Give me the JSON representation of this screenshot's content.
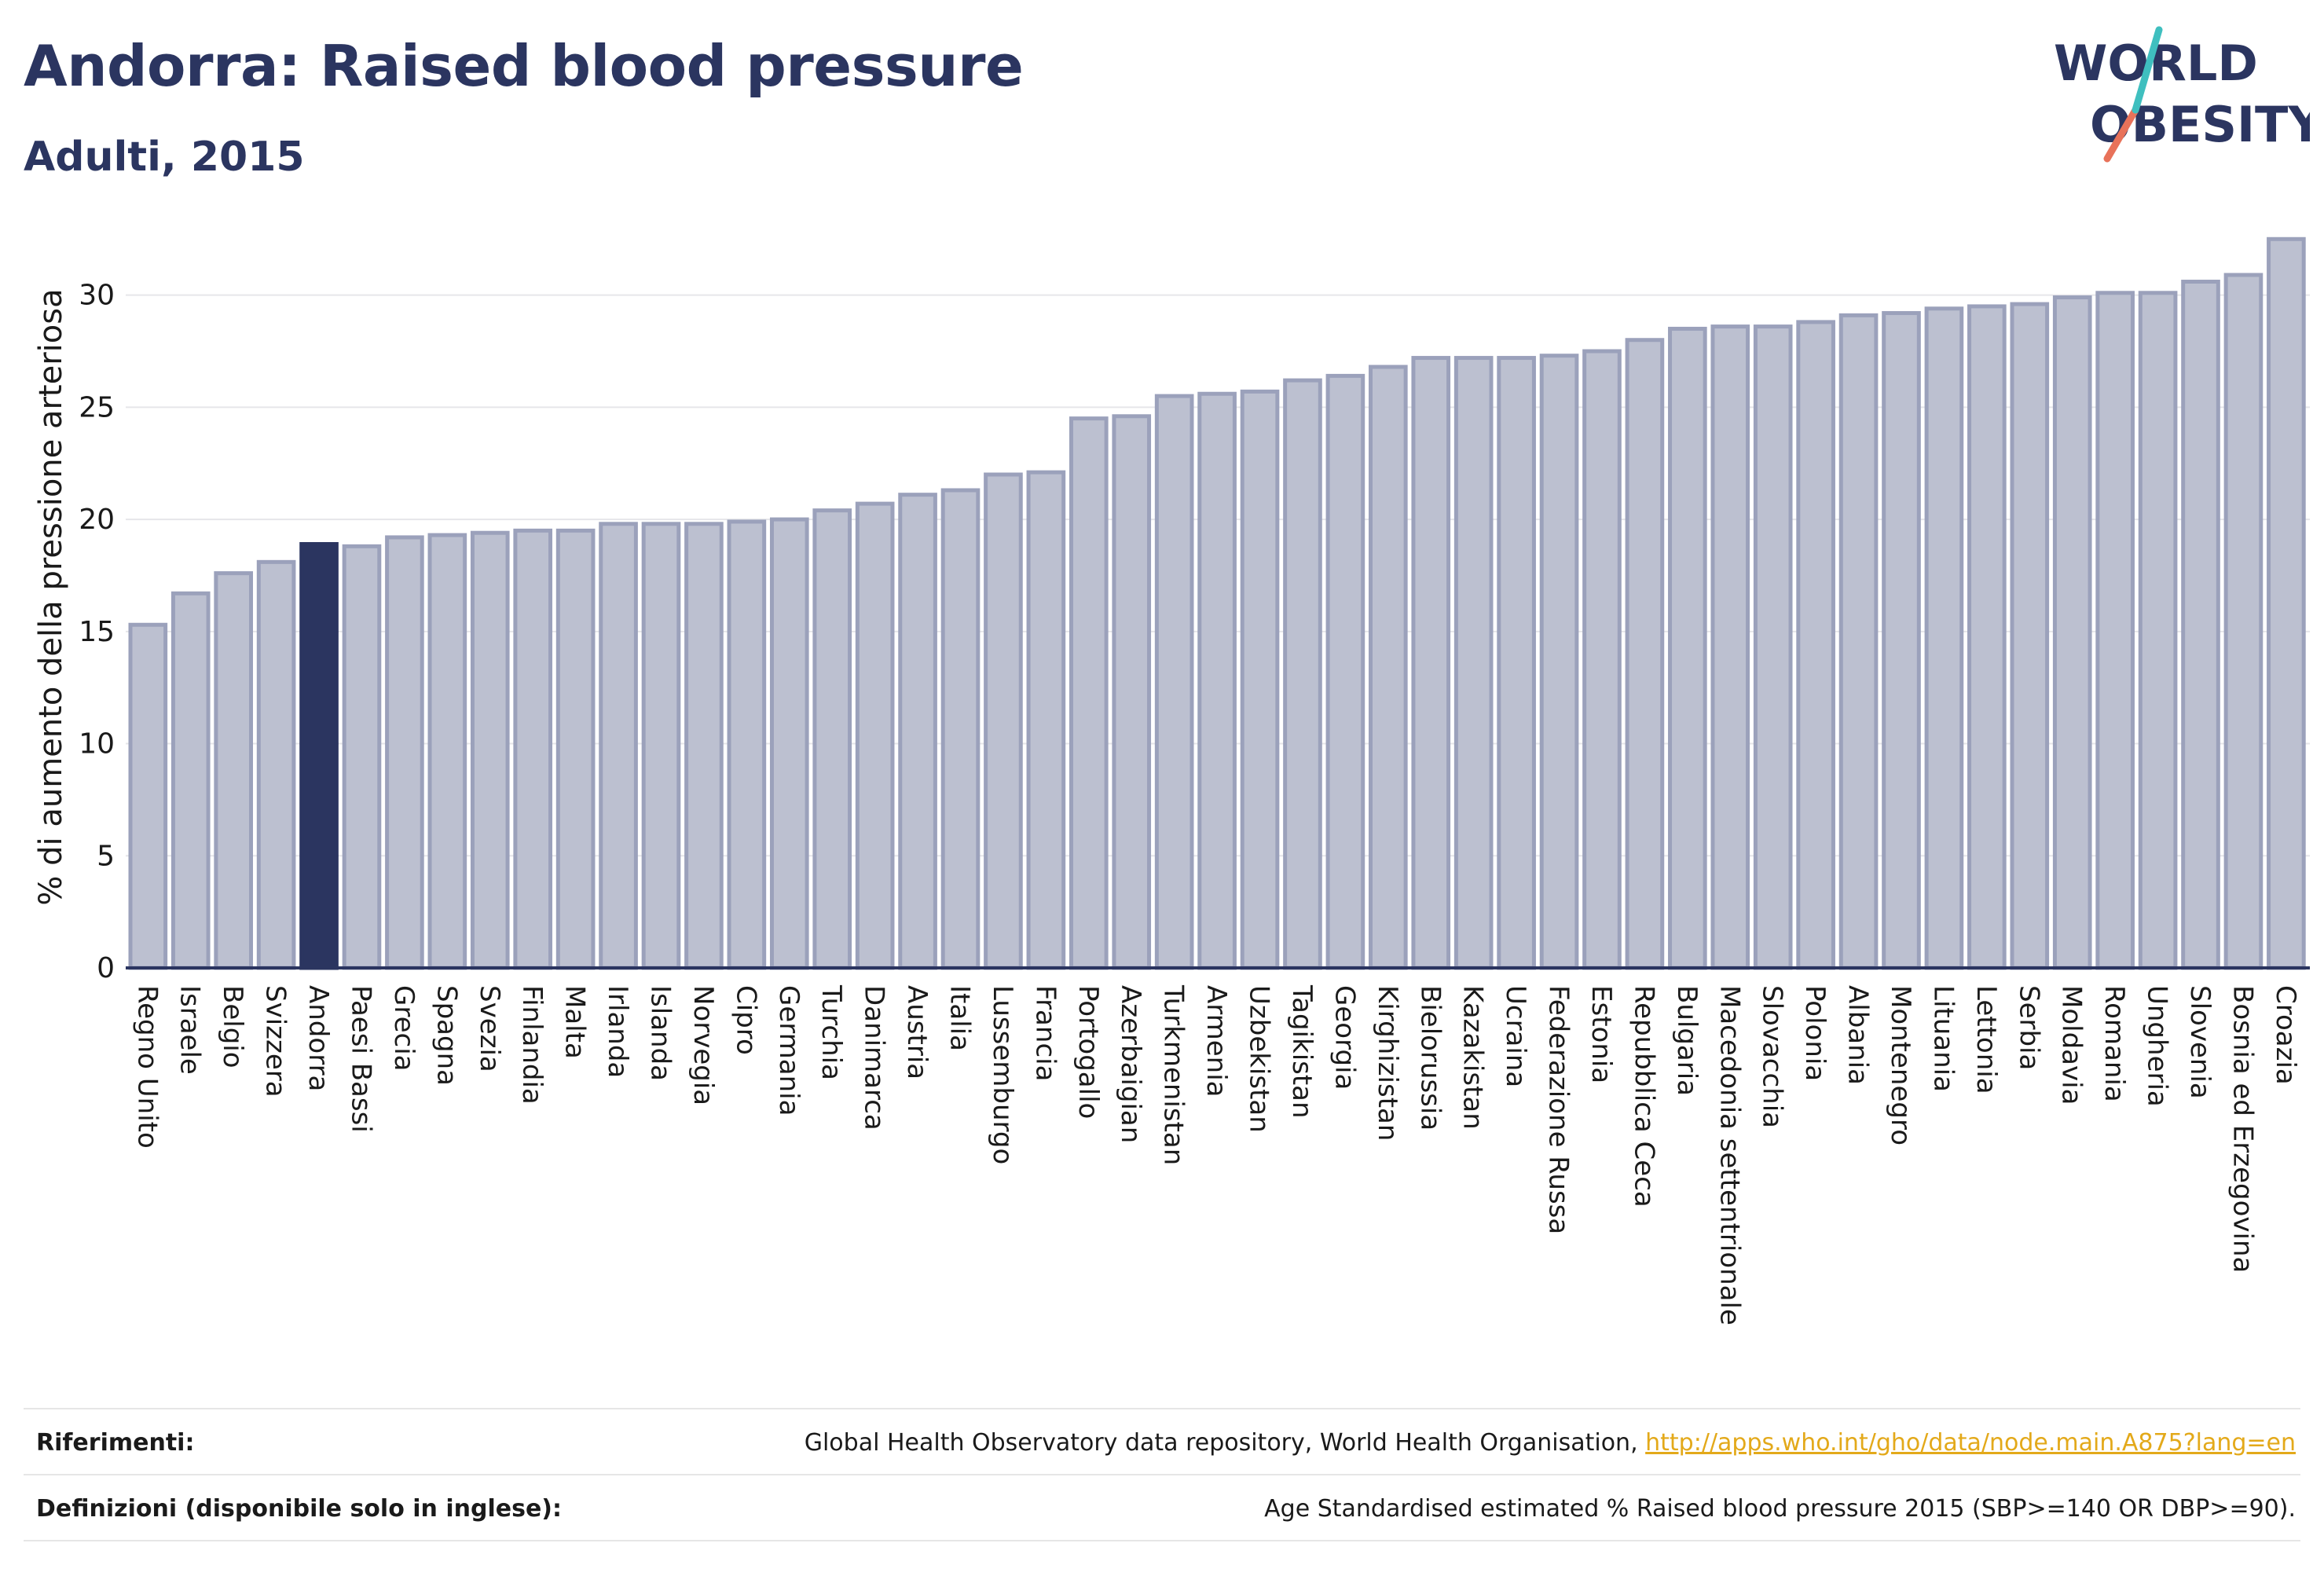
{
  "header": {
    "title": "Andorra: Raised blood pressure",
    "subtitle": "Adulti, 2015"
  },
  "logo": {
    "line1": "WORLD",
    "line2": "OBESITY",
    "colors": {
      "text": "#2b3560",
      "slash_top": "#3fbfbf",
      "slash_bottom": "#e8725a"
    }
  },
  "colors": {
    "bar_fill": "#bcc0d0",
    "bar_stroke": "#9ba1bb",
    "highlight_fill": "#2b3560",
    "grid": "#e6e6ea",
    "axis": "#2b3560"
  },
  "chart_data": {
    "type": "bar",
    "ylabel": "% di aumento della pressione arteriosa",
    "ylim": [
      0,
      33
    ],
    "yticks": [
      0,
      5,
      10,
      15,
      20,
      25,
      30
    ],
    "grid": true,
    "highlight": "Andorra",
    "categories": [
      "Regno Unito",
      "Israele",
      "Belgio",
      "Svizzera",
      "Andorra",
      "Paesi Bassi",
      "Grecia",
      "Spagna",
      "Svezia",
      "Finlandia",
      "Malta",
      "Irlanda",
      "Islanda",
      "Norvegia",
      "Cipro",
      "Germania",
      "Turchia",
      "Danimarca",
      "Austria",
      "Italia",
      "Lussemburgo",
      "Francia",
      "Portogallo",
      "Azerbaigian",
      "Turkmenistan",
      "Armenia",
      "Uzbekistan",
      "Tagikistan",
      "Georgia",
      "Kirghizistan",
      "Bielorussia",
      "Kazakistan",
      "Ucraina",
      "Federazione Russa",
      "Estonia",
      "Repubblica Ceca",
      "Bulgaria",
      "Macedonia settentrionale",
      "Slovacchia",
      "Polonia",
      "Albania",
      "Montenegro",
      "Lituania",
      "Lettonia",
      "Serbia",
      "Moldavia",
      "Romania",
      "Ungheria",
      "Slovenia",
      "Bosnia ed Erzegovina",
      "Croazia"
    ],
    "values": [
      15.3,
      16.7,
      17.6,
      18.1,
      18.9,
      18.8,
      19.2,
      19.3,
      19.4,
      19.5,
      19.5,
      19.8,
      19.8,
      19.8,
      19.9,
      20.0,
      20.4,
      20.7,
      21.1,
      21.3,
      22.0,
      22.1,
      24.5,
      24.6,
      25.5,
      25.6,
      25.7,
      26.2,
      26.4,
      26.8,
      27.2,
      27.2,
      27.2,
      27.3,
      27.5,
      28.0,
      28.5,
      28.6,
      28.6,
      28.8,
      29.1,
      29.2,
      29.4,
      29.5,
      29.6,
      29.9,
      30.1,
      30.1,
      30.6,
      30.9,
      32.5
    ]
  },
  "footer": {
    "refs_label": "Riferimenti:",
    "refs_text": "Global Health Observatory data repository, World Health Organisation, ",
    "refs_link": "http://apps.who.int/gho/data/node.main.A875?lang=en",
    "defs_label": "Definizioni (disponibile solo in inglese):",
    "defs_text": "Age Standardised estimated % Raised blood pressure 2015 (SBP>=140 OR DBP>=90)."
  }
}
